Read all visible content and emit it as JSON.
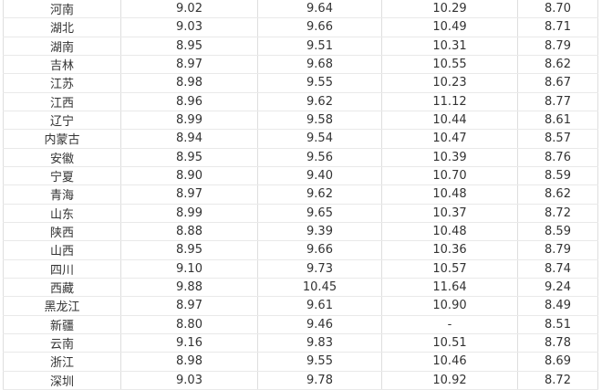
{
  "chart_data": {
    "type": "table",
    "title": "",
    "header_visible": false,
    "num_columns": 5,
    "rows": [
      {
        "label": "河南",
        "values": [
          "9.02",
          "9.64",
          "10.29",
          "8.70"
        ]
      },
      {
        "label": "湖北",
        "values": [
          "9.03",
          "9.66",
          "10.49",
          "8.71"
        ]
      },
      {
        "label": "湖南",
        "values": [
          "8.95",
          "9.51",
          "10.31",
          "8.79"
        ]
      },
      {
        "label": "吉林",
        "values": [
          "8.97",
          "9.68",
          "10.55",
          "8.62"
        ]
      },
      {
        "label": "江苏",
        "values": [
          "8.98",
          "9.55",
          "10.23",
          "8.67"
        ]
      },
      {
        "label": "江西",
        "values": [
          "8.96",
          "9.62",
          "11.12",
          "8.77"
        ]
      },
      {
        "label": "辽宁",
        "values": [
          "8.99",
          "9.58",
          "10.44",
          "8.61"
        ]
      },
      {
        "label": "内蒙古",
        "values": [
          "8.94",
          "9.54",
          "10.47",
          "8.57"
        ]
      },
      {
        "label": "安徽",
        "values": [
          "8.95",
          "9.56",
          "10.39",
          "8.76"
        ]
      },
      {
        "label": "宁夏",
        "values": [
          "8.90",
          "9.40",
          "10.70",
          "8.59"
        ]
      },
      {
        "label": "青海",
        "values": [
          "8.97",
          "9.62",
          "10.48",
          "8.62"
        ]
      },
      {
        "label": "山东",
        "values": [
          "8.99",
          "9.65",
          "10.37",
          "8.72"
        ]
      },
      {
        "label": "陕西",
        "values": [
          "8.88",
          "9.39",
          "10.48",
          "8.59"
        ]
      },
      {
        "label": "山西",
        "values": [
          "8.95",
          "9.66",
          "10.36",
          "8.79"
        ]
      },
      {
        "label": "四川",
        "values": [
          "9.10",
          "9.73",
          "10.57",
          "8.74"
        ]
      },
      {
        "label": "西藏",
        "values": [
          "9.88",
          "10.45",
          "11.64",
          "9.24"
        ]
      },
      {
        "label": "黑龙江",
        "values": [
          "8.97",
          "9.61",
          "10.90",
          "8.49"
        ]
      },
      {
        "label": "新疆",
        "values": [
          "8.80",
          "9.46",
          "-",
          "8.51"
        ]
      },
      {
        "label": "云南",
        "values": [
          "9.16",
          "9.83",
          "10.51",
          "8.78"
        ]
      },
      {
        "label": "浙江",
        "values": [
          "8.98",
          "9.55",
          "10.46",
          "8.69"
        ]
      },
      {
        "label": "深圳",
        "values": [
          "9.03",
          "9.78",
          "10.92",
          "8.72"
        ]
      }
    ]
  },
  "style": {
    "background": "#ffffff",
    "text_color": "#333333",
    "horizontal_line_color": "#e9e9e9",
    "vertical_line_color": "#dedede"
  }
}
